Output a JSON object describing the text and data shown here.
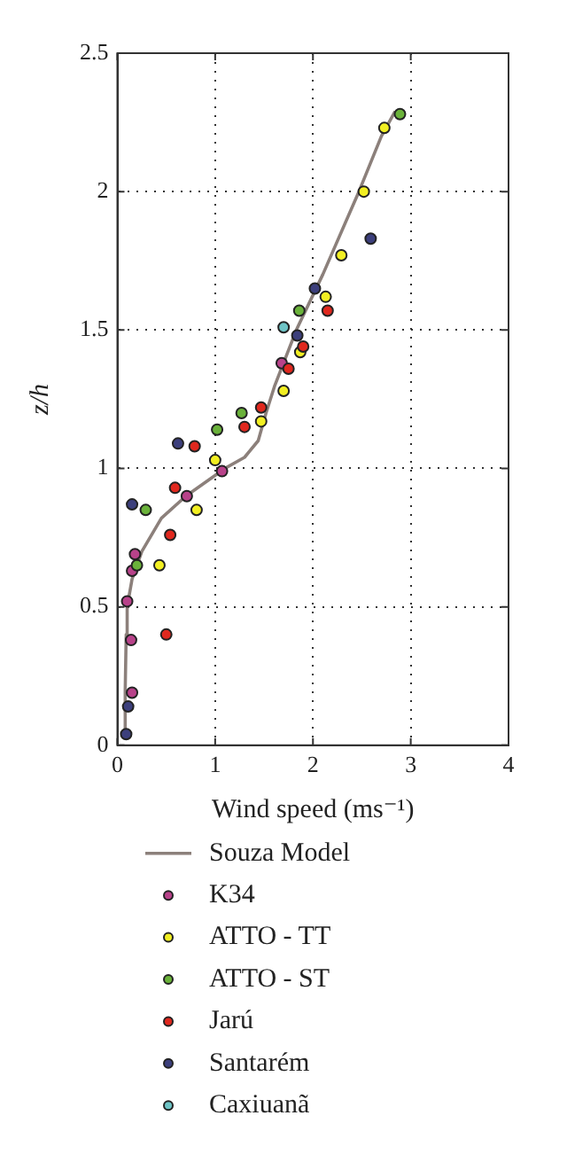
{
  "chart_data": {
    "type": "scatter",
    "xlabel": "Wind speed (ms⁻¹)",
    "ylabel": "z/h",
    "xlim": [
      0,
      4
    ],
    "xticks": [
      0,
      1,
      2,
      3,
      4
    ],
    "ylim": [
      0,
      2.5
    ],
    "yticks": [
      0,
      0.5,
      1,
      1.5,
      2,
      2.5
    ],
    "grid": true,
    "legend": "bottom",
    "marker": "circle",
    "series": [
      {
        "name": "Souza Model",
        "type": "line",
        "marker": "none",
        "color": "#8c807b",
        "x": [
          0.07,
          0.08,
          0.09,
          0.1,
          0.15,
          0.25,
          0.45,
          0.7,
          1.1,
          1.3,
          1.44,
          1.52,
          1.61,
          1.83,
          2.1,
          2.47,
          2.7,
          2.84
        ],
        "values": [
          0.03,
          0.2,
          0.4,
          0.5,
          0.6,
          0.7,
          0.82,
          0.9,
          1.0,
          1.04,
          1.1,
          1.2,
          1.3,
          1.5,
          1.7,
          2.0,
          2.2,
          2.29
        ]
      },
      {
        "name": "K34",
        "color": "#b8428a",
        "x": [
          1.68,
          1.07,
          0.71,
          0.18,
          0.15,
          0.1,
          0.14,
          0.15
        ],
        "values": [
          1.38,
          0.99,
          0.9,
          0.69,
          0.63,
          0.52,
          0.38,
          0.19
        ]
      },
      {
        "name": "ATTO - TT",
        "color": "#f2ef22",
        "x": [
          2.73,
          2.52,
          2.29,
          2.13,
          1.87,
          1.7,
          1.47,
          1.0,
          0.81,
          0.43
        ],
        "values": [
          2.23,
          2.0,
          1.77,
          1.62,
          1.42,
          1.28,
          1.17,
          1.03,
          0.85,
          0.65
        ]
      },
      {
        "name": "ATTO - ST",
        "color": "#6ab23a",
        "x": [
          2.89,
          1.86,
          1.27,
          1.02,
          0.29,
          0.2
        ],
        "values": [
          2.28,
          1.57,
          1.2,
          1.14,
          0.85,
          0.65
        ]
      },
      {
        "name": "Jarú",
        "color": "#e0281e",
        "x": [
          2.15,
          1.9,
          1.75,
          1.47,
          1.3,
          0.79,
          0.59,
          0.54,
          0.5
        ],
        "values": [
          1.57,
          1.44,
          1.36,
          1.22,
          1.15,
          1.08,
          0.93,
          0.76,
          0.4
        ]
      },
      {
        "name": "Santarém",
        "color": "#3c3f7c",
        "x": [
          2.59,
          2.02,
          1.84,
          0.62,
          0.15,
          0.11,
          0.09
        ],
        "values": [
          1.83,
          1.65,
          1.48,
          1.09,
          0.87,
          0.14,
          0.04
        ]
      },
      {
        "name": "Caxiuanã",
        "color": "#6ec4c6",
        "x": [
          1.7
        ],
        "values": [
          1.51
        ]
      }
    ]
  }
}
